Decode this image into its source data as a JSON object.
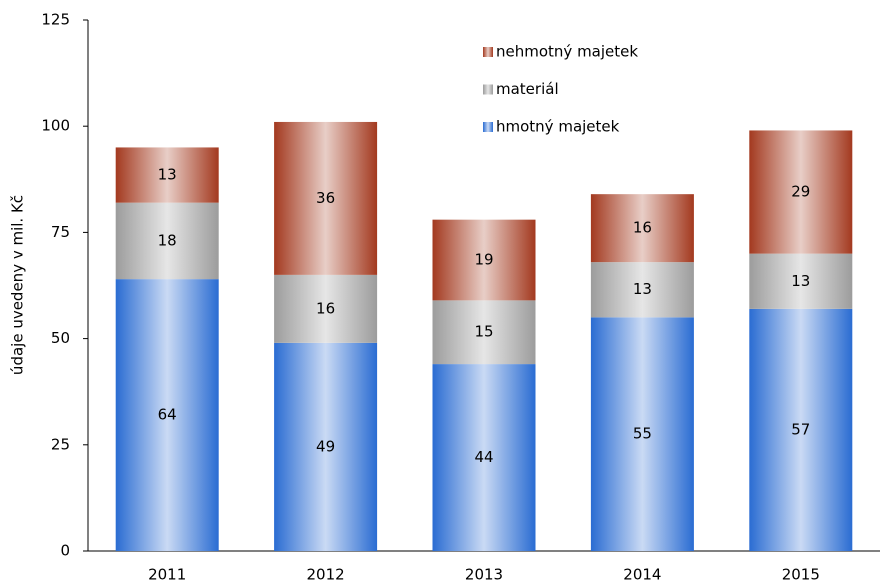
{
  "chart_data": {
    "type": "stacked-bar",
    "y_label": "údaje uvedeny v mil. Kč",
    "categories": [
      "2011",
      "2012",
      "2013",
      "2014",
      "2015"
    ],
    "series": [
      {
        "name": "hmotný majetek",
        "color": "#2a6cd2",
        "values": [
          64,
          49,
          44,
          55,
          57
        ]
      },
      {
        "name": "materiál",
        "color": "#9c9c9c",
        "values": [
          18,
          16,
          15,
          13,
          13
        ]
      },
      {
        "name": "nehmotný majetek",
        "color": "#a3391f",
        "values": [
          13,
          36,
          19,
          16,
          29
        ]
      }
    ],
    "ylim": [
      0,
      125
    ],
    "yticks": [
      0,
      25,
      50,
      75,
      100,
      125
    ],
    "legend": "top-right"
  }
}
